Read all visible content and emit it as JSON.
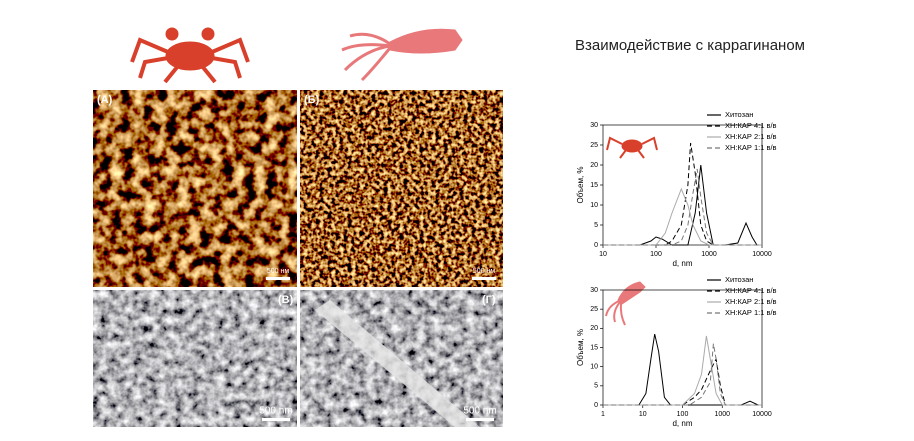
{
  "title": "Взаимодействие с каррагинаном",
  "panels": [
    {
      "label": "(А)",
      "scale": "500 нм"
    },
    {
      "label": "(Б)",
      "scale": "500 нм"
    },
    {
      "label": "(В)",
      "scale": "500 nm"
    },
    {
      "label": "(Г)",
      "scale": "500 nm"
    }
  ],
  "chart_data": [
    {
      "type": "line",
      "xlabel": "d, nm",
      "ylabel": "Объем, %",
      "log_x": true,
      "xlim": [
        10,
        10000
      ],
      "xticks": [
        10,
        100,
        1000,
        10000
      ],
      "ylim": [
        0,
        30
      ],
      "yticks": [
        0,
        5,
        10,
        15,
        20,
        25,
        30
      ],
      "legend": "top-right",
      "series": [
        {
          "name": "Хитозан",
          "color": "#000000",
          "dash": "none",
          "x": [
            10,
            50,
            80,
            100,
            130,
            200,
            400,
            550,
            700,
            900,
            1200,
            2000,
            3500,
            5000,
            6500,
            8000,
            10000
          ],
          "values": [
            0,
            0,
            1,
            2,
            1.5,
            0,
            0,
            8,
            20,
            8,
            0,
            0,
            0.5,
            5.5,
            2,
            0,
            0
          ]
        },
        {
          "name": "ХН:КАР 4:1 в/в",
          "color": "#000000",
          "dash": "5,3",
          "x": [
            10,
            150,
            200,
            300,
            400,
            450,
            550,
            700,
            900,
            1200,
            10000
          ],
          "values": [
            0,
            0,
            1,
            5,
            15,
            25.5,
            18,
            5,
            1,
            0,
            0
          ]
        },
        {
          "name": "ХН:КАР 2:1 в/в",
          "color": "#aaaaaa",
          "dash": "none",
          "x": [
            10,
            100,
            150,
            200,
            300,
            400,
            500,
            700,
            1000,
            10000
          ],
          "values": [
            0,
            0,
            3,
            8,
            14,
            10,
            5,
            1,
            0,
            0
          ]
        },
        {
          "name": "ХН:КАР 1:1 в/в",
          "color": "#777777",
          "dash": "5,3",
          "x": [
            10,
            200,
            300,
            400,
            500,
            600,
            700,
            900,
            1200,
            10000
          ],
          "values": [
            0,
            0,
            1,
            5,
            13,
            19,
            12,
            3,
            0,
            0
          ]
        }
      ]
    },
    {
      "type": "line",
      "xlabel": "d, nm",
      "ylabel": "Объем, %",
      "log_x": true,
      "xlim": [
        1,
        10000
      ],
      "xticks": [
        1,
        10,
        100,
        1000,
        10000
      ],
      "ylim": [
        0,
        30
      ],
      "yticks": [
        0,
        5,
        10,
        15,
        20,
        25,
        30
      ],
      "legend": "top-right",
      "series": [
        {
          "name": "Хитозан",
          "color": "#000000",
          "dash": "none",
          "x": [
            1,
            8,
            12,
            16,
            20,
            25,
            35,
            50,
            100,
            1000,
            3000,
            5000,
            8000,
            10000
          ],
          "values": [
            0,
            0,
            3,
            12,
            18.5,
            14,
            2,
            0,
            0,
            0,
            0,
            1,
            0,
            0
          ]
        },
        {
          "name": "ХН:КАР 4:1 в/в",
          "color": "#000000",
          "dash": "5,3",
          "x": [
            1,
            100,
            200,
            300,
            500,
            700,
            900,
            1200,
            10000
          ],
          "values": [
            0,
            0,
            2,
            4,
            9,
            12,
            5,
            0,
            0
          ]
        },
        {
          "name": "ХН:КАР 2:1 в/в",
          "color": "#aaaaaa",
          "dash": "none",
          "x": [
            1,
            100,
            200,
            300,
            400,
            500,
            700,
            1000,
            10000
          ],
          "values": [
            0,
            0,
            3,
            8,
            18,
            12,
            3,
            0,
            0
          ]
        },
        {
          "name": "ХН:КАР 1:1 в/в",
          "color": "#777777",
          "dash": "5,3",
          "x": [
            1,
            150,
            300,
            500,
            600,
            700,
            900,
            1200,
            10000
          ],
          "values": [
            0,
            0,
            2,
            6,
            16,
            12,
            3,
            0,
            0
          ]
        }
      ]
    }
  ]
}
